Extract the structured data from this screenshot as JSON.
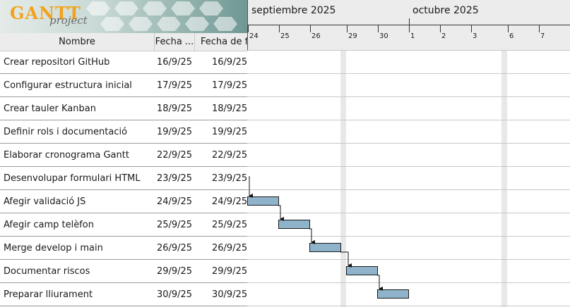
{
  "logo": {
    "text": "GANTT",
    "subtext": "project"
  },
  "table": {
    "headers": {
      "name": "Nombre",
      "start": "Fecha ...",
      "end": "Fecha de fir"
    },
    "tasks": [
      {
        "name": "Crear repositori GitHub",
        "start": "16/9/25",
        "end": "16/9/25"
      },
      {
        "name": "Configurar estructura inicial",
        "start": "17/9/25",
        "end": "17/9/25"
      },
      {
        "name": "Crear tauler Kanban",
        "start": "18/9/25",
        "end": "18/9/25"
      },
      {
        "name": "Definir rols i documentació",
        "start": "19/9/25",
        "end": "19/9/25"
      },
      {
        "name": "Elaborar cronograma Gantt",
        "start": "22/9/25",
        "end": "22/9/25"
      },
      {
        "name": "Desenvolupar formulari HTML",
        "start": "23/9/25",
        "end": "23/9/25"
      },
      {
        "name": "Afegir validació JS",
        "start": "24/9/25",
        "end": "24/9/25"
      },
      {
        "name": "Afegir camp telèfon",
        "start": "25/9/25",
        "end": "25/9/25"
      },
      {
        "name": "Merge develop i main",
        "start": "26/9/25",
        "end": "26/9/25"
      },
      {
        "name": "Documentar riscos",
        "start": "29/9/25",
        "end": "29/9/25"
      },
      {
        "name": "Preparar lliurament",
        "start": "30/9/25",
        "end": "30/9/25"
      }
    ]
  },
  "timeline": {
    "months": [
      "septiembre 2025",
      "octubre 2025"
    ],
    "days": [
      "24",
      "25",
      "26",
      "29",
      "30",
      "1",
      "2",
      "3",
      "6",
      "7"
    ]
  },
  "colors": {
    "bar": "#8fb3ca",
    "header": "#ececec",
    "logo_accent": "#f4a21c"
  }
}
